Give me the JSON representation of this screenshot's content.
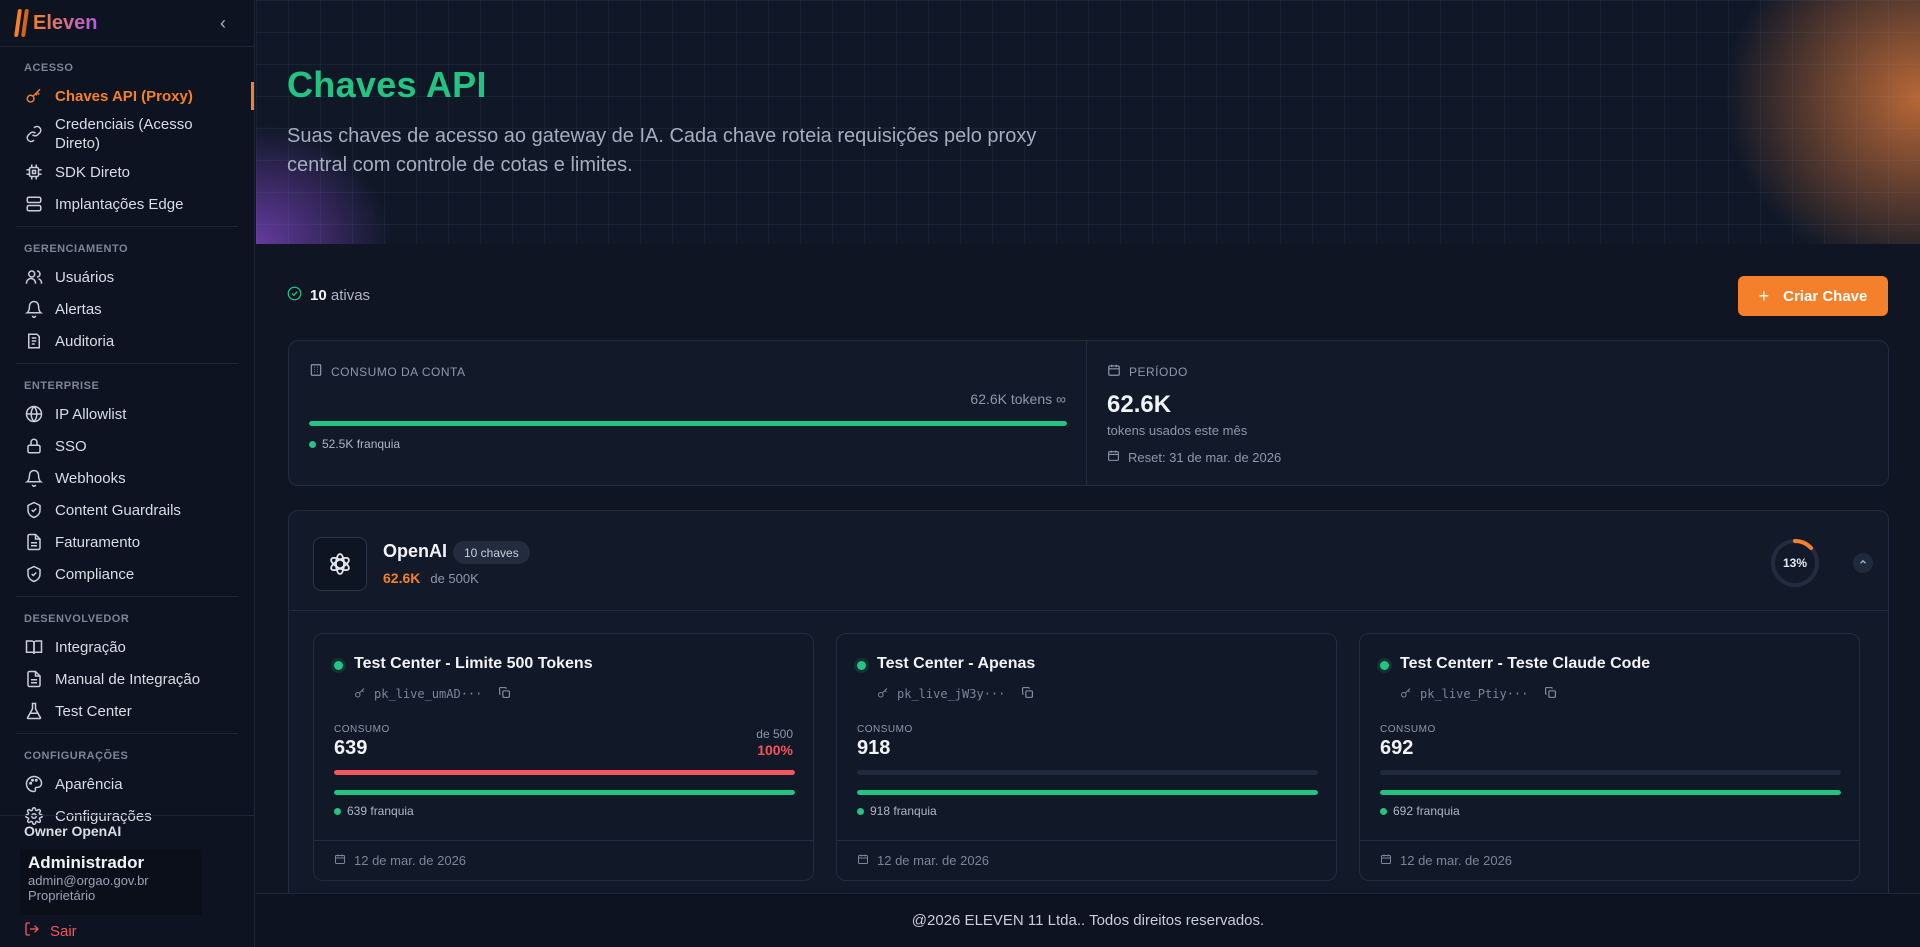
{
  "brand": {
    "name": "Eleven"
  },
  "sidebar": {
    "sections": [
      {
        "label": "ACESSO",
        "items": [
          {
            "label": "Chaves API (Proxy)",
            "icon": "key-icon",
            "active": true
          },
          {
            "label": "Credenciais (Acesso Direto)",
            "icon": "link-icon"
          },
          {
            "label": "SDK Direto",
            "icon": "chip-icon"
          },
          {
            "label": "Implantações Edge",
            "icon": "server-icon"
          }
        ]
      },
      {
        "label": "GERENCIAMENTO",
        "items": [
          {
            "label": "Usuários",
            "icon": "users-icon"
          },
          {
            "label": "Alertas",
            "icon": "bell-icon"
          },
          {
            "label": "Auditoria",
            "icon": "audit-icon"
          }
        ]
      },
      {
        "label": "ENTERPRISE",
        "items": [
          {
            "label": "IP Allowlist",
            "icon": "globe-icon"
          },
          {
            "label": "SSO",
            "icon": "lock-icon"
          },
          {
            "label": "Webhooks",
            "icon": "bell-icon"
          },
          {
            "label": "Content Guardrails",
            "icon": "shield-icon"
          },
          {
            "label": "Faturamento",
            "icon": "document-icon"
          },
          {
            "label": "Compliance",
            "icon": "shield-icon"
          }
        ]
      },
      {
        "label": "DESENVOLVEDOR",
        "items": [
          {
            "label": "Integração",
            "icon": "book-icon"
          },
          {
            "label": "Manual de Integração",
            "icon": "document-icon"
          },
          {
            "label": "Test Center",
            "icon": "flask-icon"
          }
        ]
      },
      {
        "label": "CONFIGURAÇÕES",
        "items": [
          {
            "label": "Aparência",
            "icon": "palette-icon"
          },
          {
            "label": "Configurações",
            "icon": "gear-icon"
          }
        ]
      }
    ],
    "owner": "Owner OpenAI",
    "user": {
      "name": "Administrador",
      "email": "admin@orgao.gov.br",
      "role": "Proprietário"
    },
    "logout": "Sair"
  },
  "hero": {
    "title": "Chaves API",
    "description": "Suas chaves de acesso ao gateway de IA. Cada chave roteia requisições pelo proxy central com controle de cotas e limites."
  },
  "status": {
    "count": "10",
    "label": "ativas"
  },
  "create_button": "Criar Chave",
  "summary": {
    "account_label": "CONSUMO DA CONTA",
    "account_tokens": "62.6K tokens ∞",
    "account_fill": 1.0,
    "franchise_legend": "52.5K franquia",
    "period_label": "PERÍODO",
    "period_value": "62.6K",
    "period_note": "tokens usados este mês",
    "reset": "Reset: 31 de mar. de 2026"
  },
  "provider": {
    "name": "OpenAI",
    "badge": "10 chaves",
    "usage": "62.6K",
    "limit": "de 500K",
    "percent_label": "13%",
    "percent": 0.13
  },
  "keys": [
    {
      "title": "Test Center - Limite 500 Tokens",
      "key": "pk_live_umAD···",
      "consumo_label": "CONSUMO",
      "value": "639",
      "limit": "de 500",
      "pct": "100%",
      "red_fill": 1.0,
      "green_fill": 1.0,
      "legend": "639 franquia",
      "date": "12 de mar. de 2026"
    },
    {
      "title": "Test Center - Apenas",
      "key": "pk_live_jW3y···",
      "consumo_label": "CONSUMO",
      "value": "918",
      "limit": "",
      "pct": "",
      "red_fill": 0,
      "green_fill": 1.0,
      "legend": "918 franquia",
      "date": "12 de mar. de 2026"
    },
    {
      "title": "Test Centerr - Teste Claude Code",
      "key": "pk_live_Ptiy···",
      "consumo_label": "CONSUMO",
      "value": "692",
      "limit": "",
      "pct": "",
      "red_fill": 0,
      "green_fill": 1.0,
      "legend": "692 franquia",
      "date": "12 de mar. de 2026"
    }
  ],
  "footer": "@2026 ELEVEN 11 Ltda.. Todos direitos reservados.",
  "colors": {
    "accent": "#f4802b",
    "green": "#23c482",
    "red": "#f4565b"
  }
}
